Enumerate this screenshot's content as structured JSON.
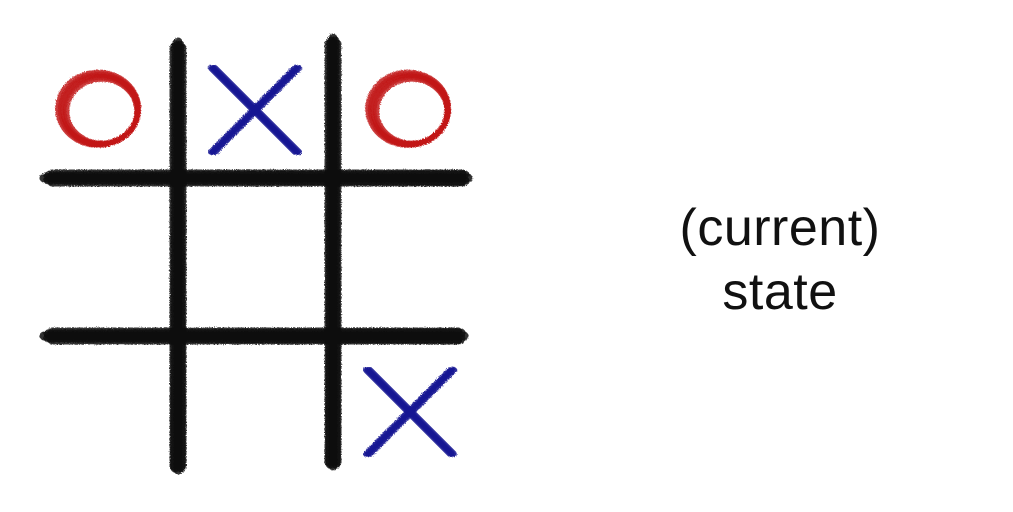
{
  "board": {
    "cells": [
      [
        "O",
        "X",
        "O"
      ],
      [
        "",
        "",
        ""
      ],
      [
        "",
        "",
        "X"
      ]
    ]
  },
  "colors": {
    "grid": "#0b0b0b",
    "o_mark": "#c21a1a",
    "x_mark": "#1a1a94",
    "background": "#ffffff"
  },
  "caption": {
    "line1": "(current)",
    "line2": "state"
  }
}
